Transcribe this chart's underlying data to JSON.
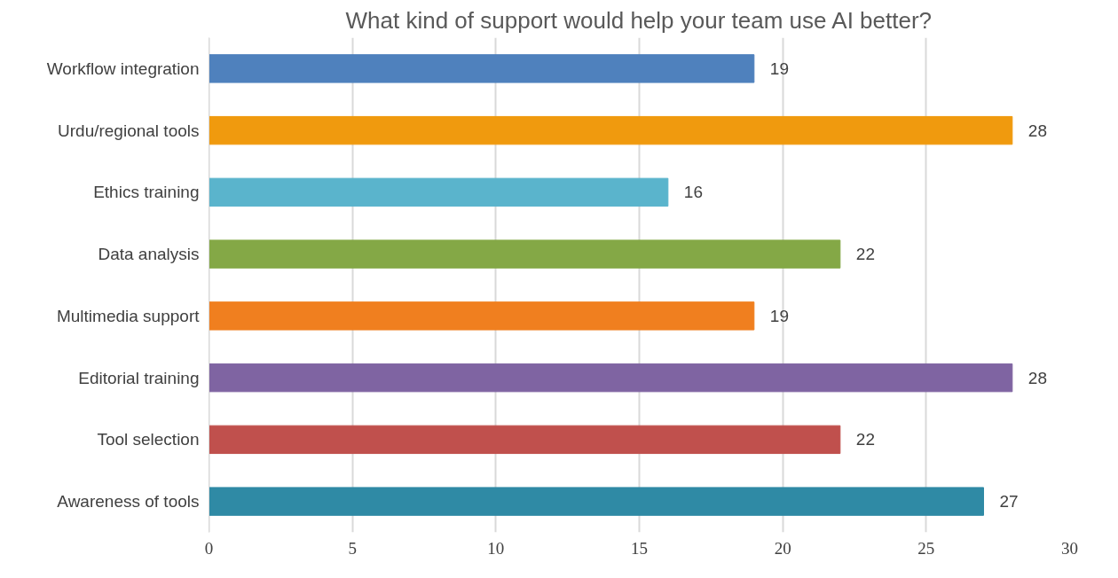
{
  "chart_data": {
    "type": "bar",
    "orientation": "horizontal",
    "title": "What kind of support would help your team use AI better?",
    "categories": [
      "Workflow integration",
      "Urdu/regional tools",
      "Ethics training",
      "Data analysis",
      "Multimedia support",
      "Editorial training",
      "Tool selection",
      "Awareness of tools"
    ],
    "values": [
      19,
      28,
      16,
      22,
      19,
      28,
      22,
      27
    ],
    "colors": [
      "#4f81bd",
      "#f09a0e",
      "#5ab4cc",
      "#84a846",
      "#f07f1f",
      "#7f64a2",
      "#c0504d",
      "#2f8aa5"
    ],
    "xlim": [
      0,
      30
    ],
    "xticks": [
      0,
      5,
      10,
      15,
      20,
      25,
      30
    ],
    "grid": "x",
    "data_labels": true
  }
}
